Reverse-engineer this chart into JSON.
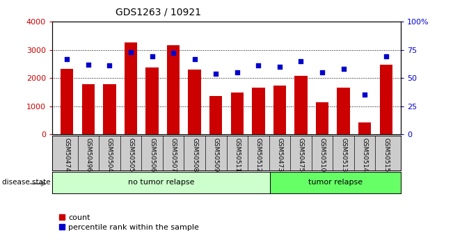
{
  "title": "GDS1263 / 10921",
  "categories": [
    "GSM50474",
    "GSM50496",
    "GSM50504",
    "GSM50505",
    "GSM50506",
    "GSM50507",
    "GSM50508",
    "GSM50509",
    "GSM50511",
    "GSM50512",
    "GSM50473",
    "GSM50475",
    "GSM50510",
    "GSM50513",
    "GSM50514",
    "GSM50515"
  ],
  "counts": [
    2320,
    1780,
    1780,
    3270,
    2370,
    3160,
    2300,
    1370,
    1480,
    1650,
    1720,
    2080,
    1130,
    1650,
    430,
    2460
  ],
  "percentiles": [
    67,
    62,
    61,
    73,
    69,
    72,
    67,
    54,
    55,
    61,
    60,
    65,
    55,
    58,
    35,
    69
  ],
  "bar_color": "#cc0000",
  "dot_color": "#0000cc",
  "no_relapse_count": 10,
  "tumor_relapse_count": 6,
  "no_relapse_label": "no tumor relapse",
  "tumor_relapse_label": "tumor relapse",
  "no_relapse_color": "#ccffcc",
  "tumor_relapse_color": "#66ff66",
  "disease_state_label": "disease state",
  "ylim_left": [
    0,
    4000
  ],
  "ylim_right": [
    0,
    100
  ],
  "left_yticks": [
    0,
    1000,
    2000,
    3000,
    4000
  ],
  "right_yticks": [
    0,
    25,
    50,
    75,
    100
  ],
  "right_yticklabels": [
    "0",
    "25",
    "50",
    "75",
    "100%"
  ],
  "legend_count_label": "count",
  "legend_percentile_label": "percentile rank within the sample",
  "tick_label_color": "#cc0000",
  "right_tick_color": "#0000cc"
}
